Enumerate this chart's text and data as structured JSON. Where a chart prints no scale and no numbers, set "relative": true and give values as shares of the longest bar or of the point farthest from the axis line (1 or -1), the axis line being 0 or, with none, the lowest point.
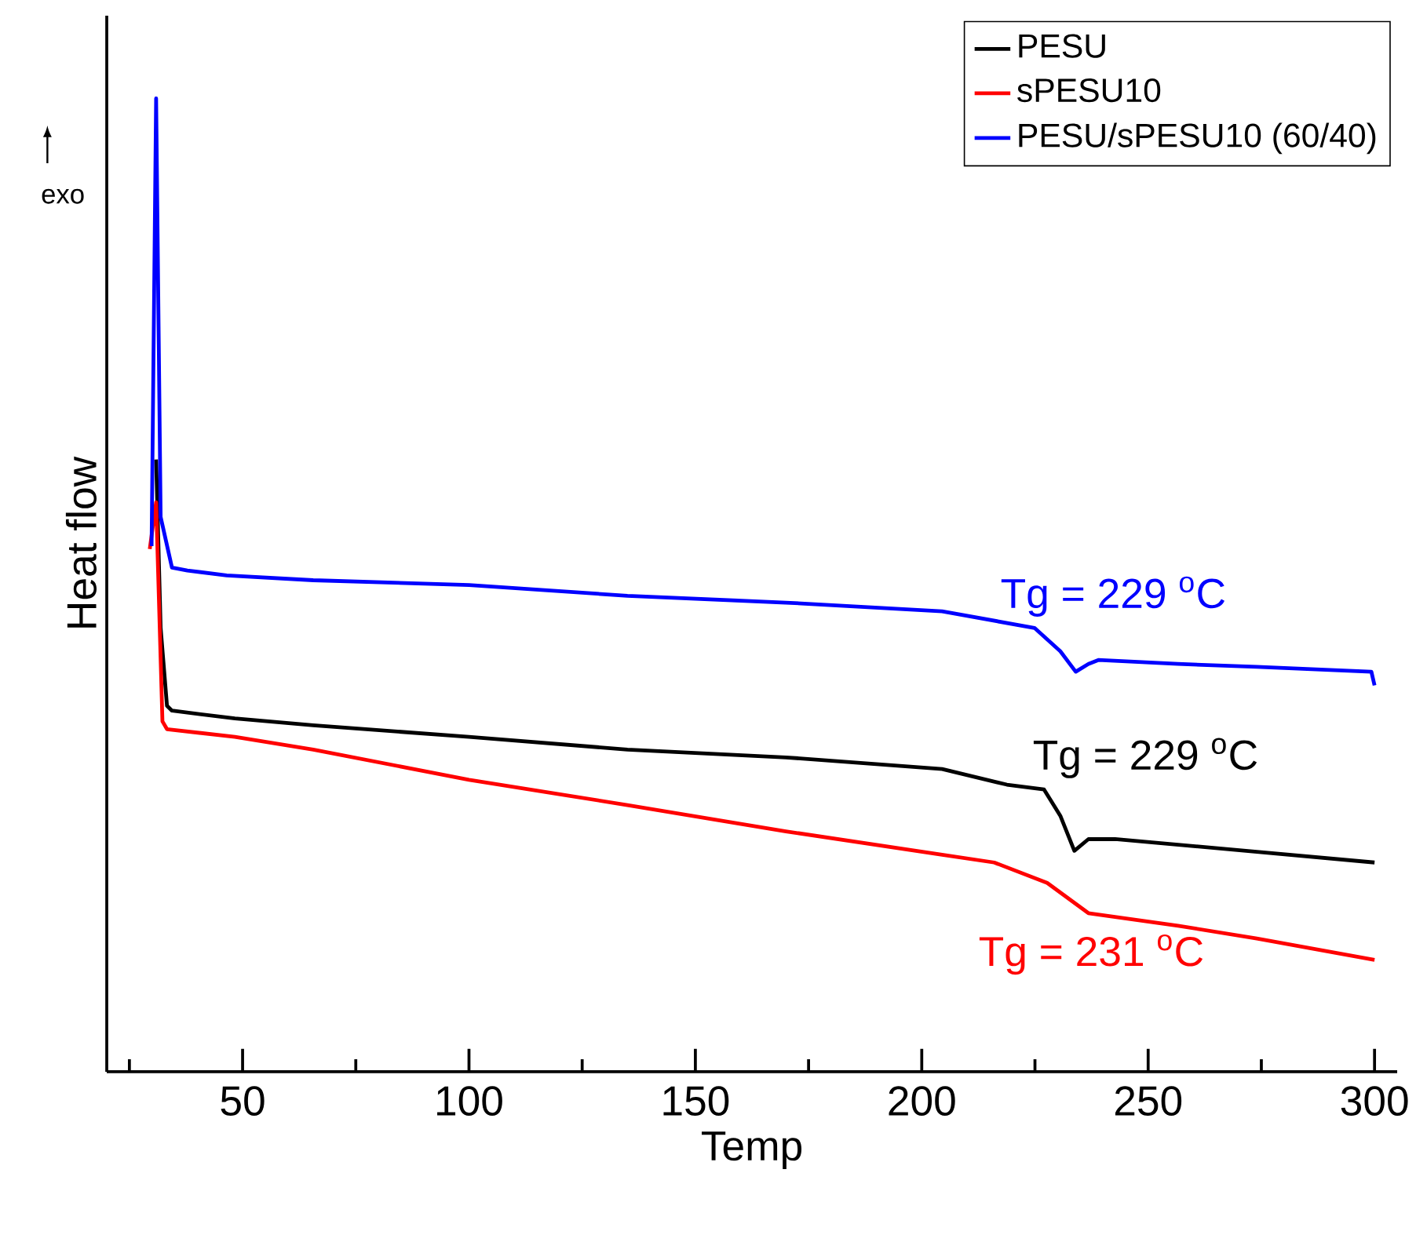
{
  "chart_data": {
    "type": "line",
    "xlabel": "Temp",
    "ylabel": "Heat flow",
    "relative": true,
    "tick_labels": "x",
    "legend": "top right",
    "marker": "none",
    "line_style": "solid",
    "grid": false,
    "xlim": [
      20,
      305
    ],
    "xticks": [
      {
        "value": 25,
        "label": null
      },
      50,
      {
        "value": 75,
        "label": null
      },
      100,
      {
        "value": 125,
        "label": null
      },
      150,
      {
        "value": 175,
        "label": null
      },
      200,
      {
        "value": 225,
        "label": null
      },
      250,
      {
        "value": 275,
        "label": null
      },
      300
    ],
    "annotations": [
      "exo",
      "Tg = 229 $^{o}$C",
      "Tg = 229 $^{o}$C",
      "Tg = 231 $^{o}$C"
    ],
    "series": [
      {
        "name": "PESU",
        "color": "#000000",
        "x": [
          30.9,
          31.9,
          33.3,
          34.4,
          48.3,
          65.6,
          100,
          135,
          170,
          204.5,
          218.8,
          227,
          230.6,
          233.7,
          236.8,
          242.7,
          274,
          300
        ],
        "values": [
          0.629,
          0.456,
          0.376,
          0.371,
          0.363,
          0.356,
          0.344,
          0.331,
          0.323,
          0.311,
          0.295,
          0.29,
          0.263,
          0.227,
          0.239,
          0.239,
          0.226,
          0.215
        ]
      },
      {
        "name": "sPESU10",
        "color": "#ff0000",
        "x": [
          29.5,
          30.9,
          32.3,
          33.3,
          48.3,
          65.6,
          100,
          135,
          170,
          204.5,
          216,
          227.7,
          236.8,
          256.6,
          274,
          300
        ],
        "values": [
          0.537,
          0.585,
          0.36,
          0.352,
          0.344,
          0.331,
          0.3,
          0.274,
          0.247,
          0.223,
          0.215,
          0.194,
          0.163,
          0.15,
          0.137,
          0.115
        ]
      },
      {
        "name": "PESU/sPESU10 (60/40)",
        "color": "#0000ff",
        "x": [
          29.9,
          30.9,
          31.9,
          34.4,
          37.8,
          46.5,
          65.6,
          100,
          135,
          170,
          204.5,
          224.9,
          230.6,
          234,
          236.8,
          239,
          256.6,
          274,
          299.3,
          300
        ],
        "values": [
          0.54,
          1.0,
          0.57,
          0.518,
          0.515,
          0.51,
          0.505,
          0.5,
          0.489,
          0.482,
          0.473,
          0.456,
          0.432,
          0.411,
          0.419,
          0.423,
          0.419,
          0.416,
          0.411,
          0.397
        ]
      }
    ]
  }
}
